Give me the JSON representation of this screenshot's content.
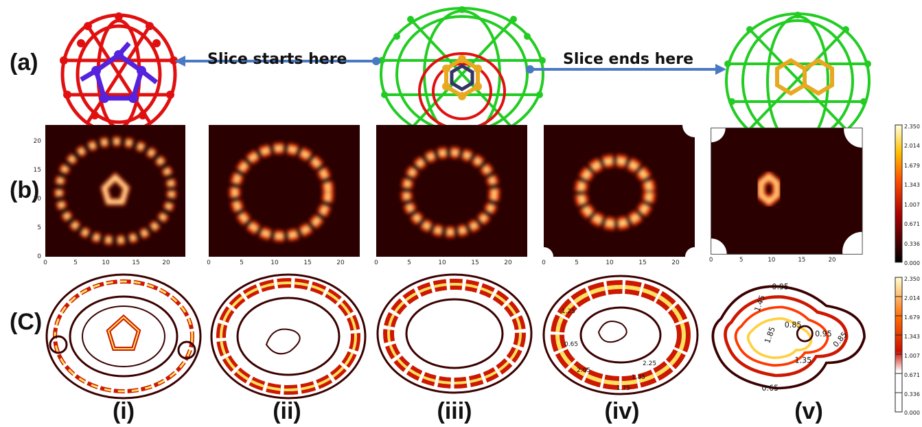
{
  "rows": {
    "a": "(a)",
    "b": "(b)",
    "c": "(C)"
  },
  "annotations": {
    "start": "Slice starts here",
    "end": "Slice ends here"
  },
  "panels": [
    "(i)",
    "(ii)",
    "(iii)",
    "(iv)",
    "(v)"
  ],
  "axis_ticks": {
    "x": [
      "0",
      "5",
      "10",
      "15",
      "20"
    ],
    "y": [
      "0",
      "5",
      "10",
      "15",
      "20"
    ]
  },
  "colorbar": {
    "ticks": [
      "2.350",
      "2.014",
      "1.679",
      "1.343",
      "1.007",
      "0.671",
      "0.336",
      "0.000"
    ]
  },
  "contour_labels": {
    "iv": [
      "1.85",
      "2.25",
      "1.75",
      "0.65",
      "2.05",
      "1.25"
    ],
    "v": [
      "0.95",
      "1.45",
      "1.85",
      "0.85",
      "0.95",
      "0.85",
      "1.35",
      "0.65"
    ]
  },
  "colors": {
    "red_cage": "#e01010",
    "green_cage": "#22cc22",
    "blue_ring": "#5522dd",
    "orange_ring": "#e8a820",
    "arrow": "#4a79c4",
    "heat_bg": "#2a0000"
  }
}
